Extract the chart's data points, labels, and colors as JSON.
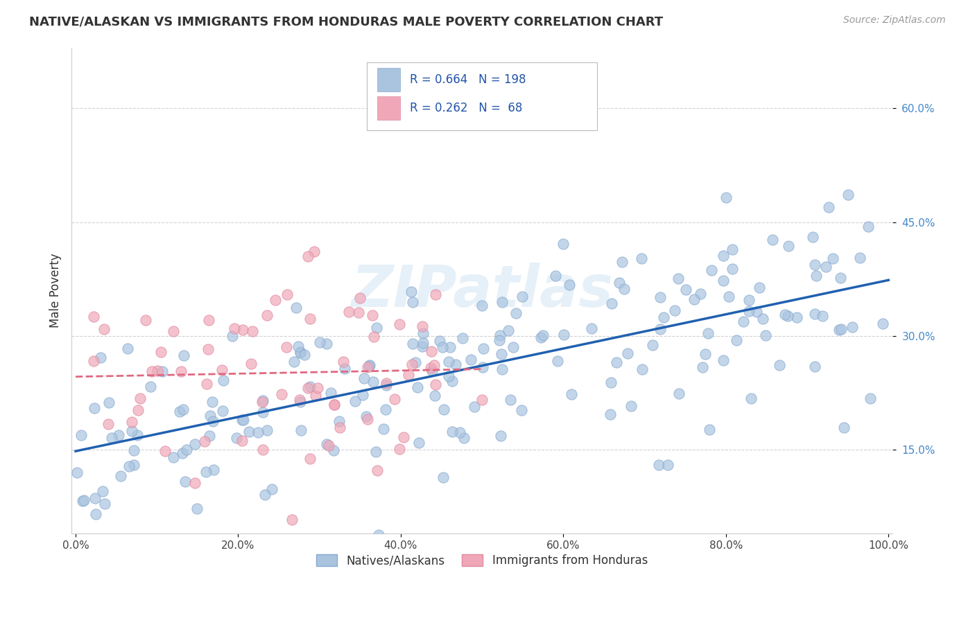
{
  "title": "NATIVE/ALASKAN VS IMMIGRANTS FROM HONDURAS MALE POVERTY CORRELATION CHART",
  "source": "Source: ZipAtlas.com",
  "ylabel": "Male Poverty",
  "r_native": 0.664,
  "n_native": 198,
  "r_honduras": 0.262,
  "n_honduras": 68,
  "native_color": "#aac4e0",
  "native_edge_color": "#88aad0",
  "honduras_color": "#f0a8b8",
  "honduras_edge_color": "#e088a0",
  "native_line_color": "#2060b0",
  "honduras_line_color": "#e06880",
  "watermark": "ZIPatlas",
  "ytick_color": "#4488cc",
  "xtick_color": "#444444",
  "legend_labels": [
    "Natives/Alaskans",
    "Immigrants from Honduras"
  ],
  "title_fontsize": 13,
  "source_fontsize": 10
}
